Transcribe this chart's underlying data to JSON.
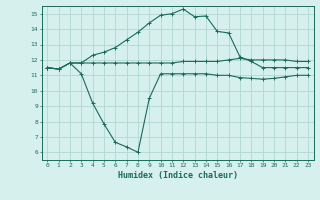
{
  "xlabel": "Humidex (Indice chaleur)",
  "ylabel": "",
  "bg_color": "#d6f0ee",
  "grid_color": "#b0d8d0",
  "line_color": "#1a6b5a",
  "xlim": [
    -0.5,
    23.5
  ],
  "ylim": [
    5.5,
    15.5
  ],
  "xticks": [
    0,
    1,
    2,
    3,
    4,
    5,
    6,
    7,
    8,
    9,
    10,
    11,
    12,
    13,
    14,
    15,
    16,
    17,
    18,
    19,
    20,
    21,
    22,
    23
  ],
  "yticks": [
    6,
    7,
    8,
    9,
    10,
    11,
    12,
    13,
    14,
    15
  ],
  "line1_x": [
    0,
    1,
    2,
    3,
    4,
    5,
    6,
    7,
    8,
    9,
    10,
    11,
    12,
    13,
    14,
    15,
    16,
    17,
    18,
    19,
    20,
    21,
    22,
    23
  ],
  "line1_y": [
    11.5,
    11.4,
    11.8,
    11.8,
    11.8,
    11.8,
    11.8,
    11.8,
    11.8,
    11.8,
    11.8,
    11.8,
    11.9,
    11.9,
    11.9,
    11.9,
    12.0,
    12.1,
    12.0,
    12.0,
    12.0,
    12.0,
    11.9,
    11.9
  ],
  "line2_x": [
    0,
    1,
    2,
    3,
    4,
    5,
    6,
    7,
    8,
    9,
    10,
    11,
    12,
    13,
    14,
    15,
    16,
    17,
    18,
    19,
    20,
    21,
    22,
    23
  ],
  "line2_y": [
    11.5,
    11.4,
    11.8,
    11.8,
    12.3,
    12.5,
    12.8,
    13.3,
    13.8,
    14.4,
    14.9,
    15.0,
    15.3,
    14.8,
    14.85,
    13.85,
    13.75,
    12.2,
    11.9,
    11.5,
    11.5,
    11.5,
    11.5,
    11.5
  ],
  "line3_x": [
    0,
    1,
    2,
    3,
    4,
    5,
    6,
    7,
    8,
    9,
    10,
    11,
    12,
    13,
    14,
    15,
    16,
    17,
    18,
    19,
    20,
    21,
    22,
    23
  ],
  "line3_y": [
    11.5,
    11.4,
    11.8,
    11.1,
    9.2,
    7.85,
    6.65,
    6.35,
    6.0,
    9.5,
    11.1,
    11.1,
    11.1,
    11.1,
    11.1,
    11.0,
    11.0,
    10.85,
    10.8,
    10.75,
    10.8,
    10.9,
    11.0,
    11.0
  ]
}
